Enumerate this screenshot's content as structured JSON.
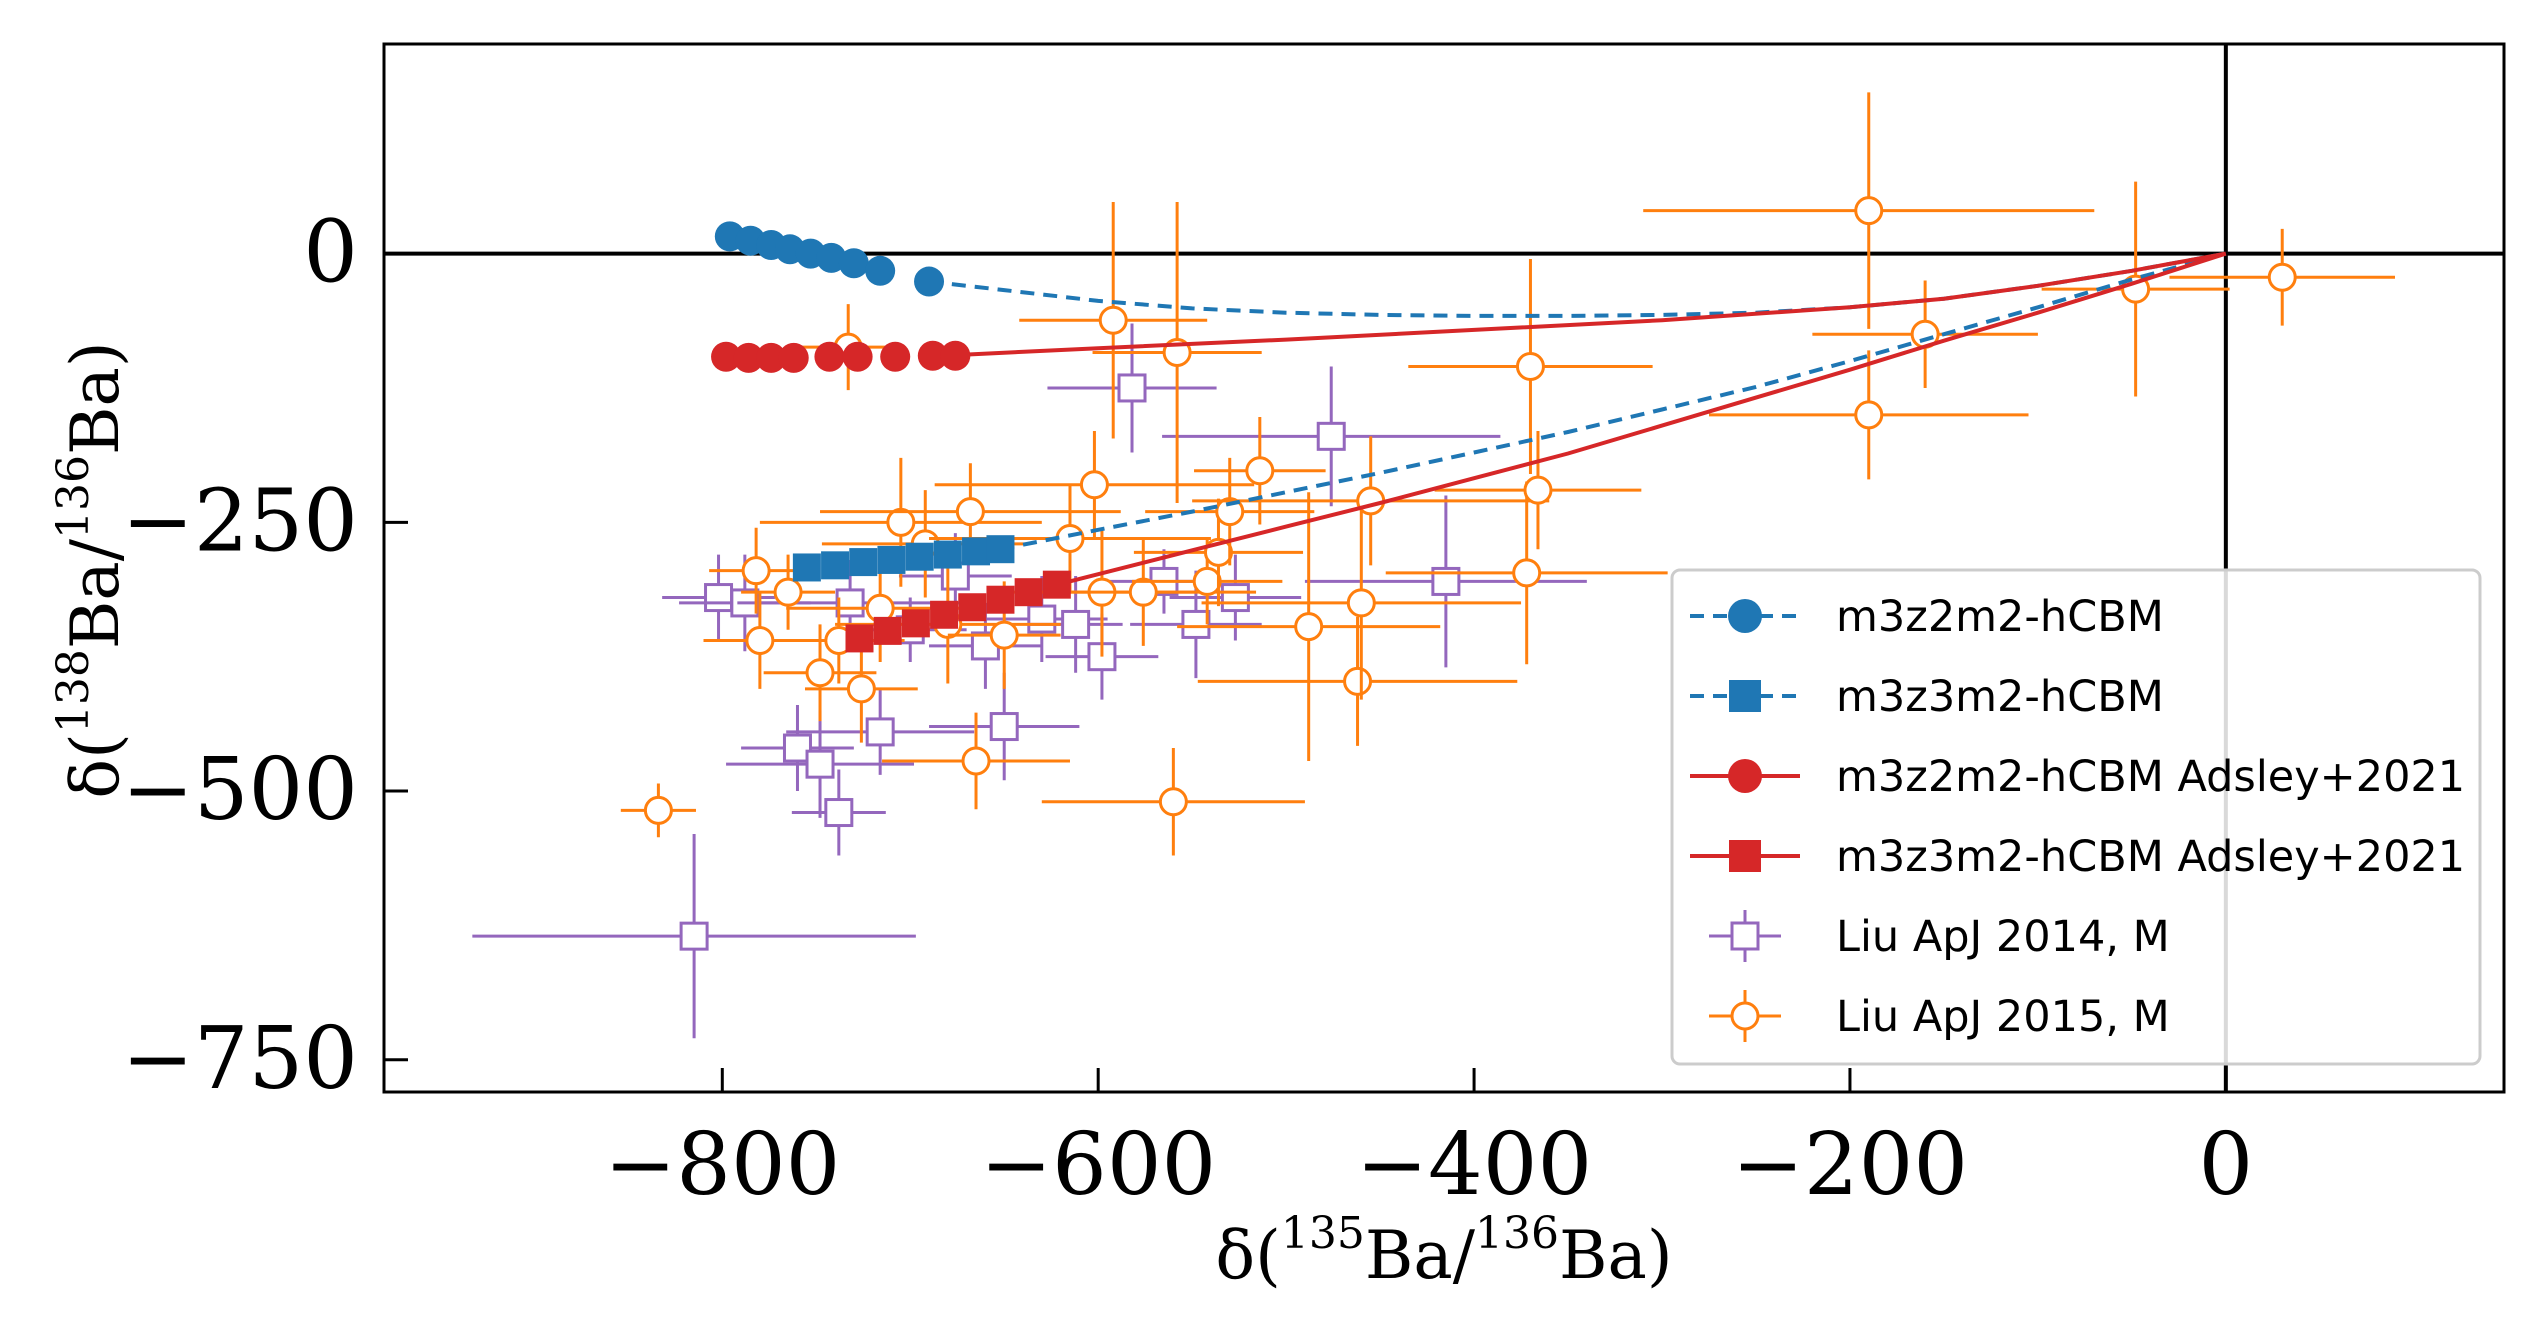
{
  "chart_data": {
    "type": "scatter",
    "xlabel": "δ(135Ba/136Ba)",
    "ylabel": "δ(138Ba/136Ba)",
    "xlabel_parts": {
      "pre": "δ(",
      "sup1": "135",
      "mid": "Ba/",
      "sup2": "136",
      "post": "Ba)"
    },
    "ylabel_parts": {
      "pre": "δ(",
      "sup1": "138",
      "mid": "Ba/",
      "sup2": "136",
      "post": "Ba)"
    },
    "xlim": [
      -980,
      148
    ],
    "ylim": [
      -780,
      195
    ],
    "xticks": [
      -800,
      -600,
      -400,
      -200,
      0
    ],
    "xtick_labels": [
      "−800",
      "−600",
      "−400",
      "−200",
      "0"
    ],
    "yticks": [
      0,
      -250,
      -500,
      -750
    ],
    "ytick_labels": [
      "0",
      "−250",
      "−500",
      "−750"
    ],
    "reference_lines": {
      "x": 0,
      "y": 0
    },
    "grid": false,
    "legend_position": "lower-right",
    "colors": {
      "blue": "#1f77b4",
      "red": "#d62728",
      "orange": "#ff7f0e",
      "purple": "#9467bd"
    },
    "series": [
      {
        "name": "m3z2m2-hCBM",
        "marker": "circle",
        "line": "dashed",
        "color": "#1f77b4",
        "curve": [
          [
            -690,
            -26
          ],
          [
            -650,
            -34
          ],
          [
            -600,
            -44
          ],
          [
            -550,
            -51
          ],
          [
            -500,
            -55
          ],
          [
            -450,
            -57
          ],
          [
            -400,
            -58
          ],
          [
            -350,
            -58
          ],
          [
            -300,
            -57
          ],
          [
            -250,
            -55
          ],
          [
            -200,
            -50
          ],
          [
            -150,
            -42
          ],
          [
            -100,
            -30
          ],
          [
            -50,
            -16
          ],
          [
            0,
            0
          ]
        ],
        "points": [
          [
            -796,
            16
          ],
          [
            -785,
            12
          ],
          [
            -774,
            8
          ],
          [
            -764,
            4
          ],
          [
            -753,
            0
          ],
          [
            -742,
            -4
          ],
          [
            -730,
            -9
          ],
          [
            -716,
            -16
          ],
          [
            -690,
            -26
          ]
        ]
      },
      {
        "name": "m3z3m2-hCBM",
        "marker": "square",
        "line": "dashed",
        "color": "#1f77b4",
        "curve": [
          [
            -652,
            -275
          ],
          [
            -600,
            -257
          ],
          [
            -550,
            -240
          ],
          [
            -500,
            -222
          ],
          [
            -450,
            -204
          ],
          [
            -400,
            -185
          ],
          [
            -350,
            -166
          ],
          [
            -300,
            -145
          ],
          [
            -250,
            -124
          ],
          [
            -200,
            -100
          ],
          [
            -150,
            -75
          ],
          [
            -100,
            -50
          ],
          [
            -50,
            -24
          ],
          [
            0,
            0
          ]
        ],
        "points": [
          [
            -755,
            -292
          ],
          [
            -740,
            -290
          ],
          [
            -725,
            -287
          ],
          [
            -710,
            -285
          ],
          [
            -695,
            -282
          ],
          [
            -680,
            -280
          ],
          [
            -665,
            -277
          ],
          [
            -652,
            -275
          ]
        ]
      },
      {
        "name": "m3z2m2-hCBM Adsley+2021",
        "marker": "circle",
        "line": "solid",
        "color": "#d62728",
        "curve": [
          [
            -683,
            -95
          ],
          [
            -600,
            -88
          ],
          [
            -500,
            -80
          ],
          [
            -400,
            -71
          ],
          [
            -300,
            -62
          ],
          [
            -200,
            -50
          ],
          [
            -150,
            -42
          ],
          [
            -100,
            -30
          ],
          [
            -50,
            -16
          ],
          [
            0,
            0
          ]
        ],
        "points": [
          [
            -798,
            -96
          ],
          [
            -786,
            -97
          ],
          [
            -774,
            -97
          ],
          [
            -762,
            -97
          ],
          [
            -743,
            -96
          ],
          [
            -728,
            -96
          ],
          [
            -708,
            -96
          ],
          [
            -688,
            -95
          ],
          [
            -676,
            -95
          ]
        ]
      },
      {
        "name": "m3z3m2-hCBM Adsley+2021",
        "marker": "square",
        "line": "solid",
        "color": "#d62728",
        "curve": [
          [
            -622,
            -308
          ],
          [
            -550,
            -276
          ],
          [
            -500,
            -254
          ],
          [
            -450,
            -232
          ],
          [
            -400,
            -209
          ],
          [
            -350,
            -186
          ],
          [
            -300,
            -160
          ],
          [
            -250,
            -134
          ],
          [
            -200,
            -108
          ],
          [
            -150,
            -81
          ],
          [
            -100,
            -55
          ],
          [
            -50,
            -28
          ],
          [
            0,
            0
          ]
        ],
        "points": [
          [
            -727,
            -358
          ],
          [
            -712,
            -351
          ],
          [
            -697,
            -344
          ],
          [
            -682,
            -336
          ],
          [
            -667,
            -329
          ],
          [
            -652,
            -322
          ],
          [
            -637,
            -315
          ],
          [
            -622,
            -308
          ]
        ]
      },
      {
        "name": "Liu ApJ 2014, M",
        "marker": "open-square",
        "line": "errorbar",
        "color": "#9467bd",
        "points": [
          {
            "x": -802,
            "y": -320,
            "xerr": 30,
            "yerr": 40
          },
          {
            "x": -788,
            "y": -325,
            "xerr": 35,
            "yerr": 45
          },
          {
            "x": -760,
            "y": -460,
            "xerr": 30,
            "yerr": 40
          },
          {
            "x": -748,
            "y": -475,
            "xerr": 50,
            "yerr": 50
          },
          {
            "x": -738,
            "y": -520,
            "xerr": 25,
            "yerr": 40
          },
          {
            "x": -732,
            "y": -325,
            "xerr": 60,
            "yerr": 40
          },
          {
            "x": -716,
            "y": -445,
            "xerr": 50,
            "yerr": 40
          },
          {
            "x": -700,
            "y": -350,
            "xerr": 30,
            "yerr": 30
          },
          {
            "x": -676,
            "y": -300,
            "xerr": 30,
            "yerr": 40
          },
          {
            "x": -660,
            "y": -365,
            "xerr": 30,
            "yerr": 40
          },
          {
            "x": -650,
            "y": -440,
            "xerr": 40,
            "yerr": 50
          },
          {
            "x": -630,
            "y": -340,
            "xerr": 35,
            "yerr": 40
          },
          {
            "x": -612,
            "y": -345,
            "xerr": 25,
            "yerr": 45
          },
          {
            "x": -598,
            "y": -375,
            "xerr": 30,
            "yerr": 40
          },
          {
            "x": -582,
            "y": -125,
            "xerr": 45,
            "yerr": 60
          },
          {
            "x": -565,
            "y": -305,
            "xerr": 30,
            "yerr": 30
          },
          {
            "x": -548,
            "y": -345,
            "xerr": 35,
            "yerr": 50
          },
          {
            "x": -527,
            "y": -320,
            "xerr": 35,
            "yerr": 40
          },
          {
            "x": -476,
            "y": -170,
            "xerr": 90,
            "yerr": 65
          },
          {
            "x": -415,
            "y": -305,
            "xerr": 75,
            "yerr": 80
          },
          {
            "x": -815,
            "y": -635,
            "xerr": 118,
            "yerr": 95
          }
        ]
      },
      {
        "name": "Liu ApJ 2015, M",
        "marker": "open-circle",
        "line": "errorbar",
        "color": "#ff7f0e",
        "points": [
          {
            "x": -834,
            "y": -518,
            "xerr": 20,
            "yerr": 25
          },
          {
            "x": -782,
            "y": -295,
            "xerr": 25,
            "yerr": 40
          },
          {
            "x": -780,
            "y": -360,
            "xerr": 30,
            "yerr": 45
          },
          {
            "x": -765,
            "y": -315,
            "xerr": 25,
            "yerr": 35
          },
          {
            "x": -748,
            "y": -390,
            "xerr": 30,
            "yerr": 45
          },
          {
            "x": -738,
            "y": -360,
            "xerr": 35,
            "yerr": 40
          },
          {
            "x": -733,
            "y": -87,
            "xerr": 30,
            "yerr": 40
          },
          {
            "x": -726,
            "y": -405,
            "xerr": 30,
            "yerr": 50
          },
          {
            "x": -716,
            "y": -330,
            "xerr": 50,
            "yerr": 50
          },
          {
            "x": -705,
            "y": -250,
            "xerr": 75,
            "yerr": 60
          },
          {
            "x": -692,
            "y": -270,
            "xerr": 55,
            "yerr": 50
          },
          {
            "x": -680,
            "y": -345,
            "xerr": 60,
            "yerr": 55
          },
          {
            "x": -668,
            "y": -240,
            "xerr": 80,
            "yerr": 45
          },
          {
            "x": -665,
            "y": -472,
            "xerr": 50,
            "yerr": 45
          },
          {
            "x": -650,
            "y": -355,
            "xerr": 30,
            "yerr": 50
          },
          {
            "x": -615,
            "y": -265,
            "xerr": 75,
            "yerr": 50
          },
          {
            "x": -602,
            "y": -215,
            "xerr": 85,
            "yerr": 50
          },
          {
            "x": -598,
            "y": -315,
            "xerr": 50,
            "yerr": 60
          },
          {
            "x": -592,
            "y": -62,
            "xerr": 50,
            "yerr": 110
          },
          {
            "x": -576,
            "y": -315,
            "xerr": 60,
            "yerr": 50
          },
          {
            "x": -560,
            "y": -510,
            "xerr": 70,
            "yerr": 50
          },
          {
            "x": -558,
            "y": -92,
            "xerr": 45,
            "yerr": 140
          },
          {
            "x": -542,
            "y": -305,
            "xerr": 40,
            "yerr": 40
          },
          {
            "x": -536,
            "y": -278,
            "xerr": 45,
            "yerr": 50
          },
          {
            "x": -530,
            "y": -240,
            "xerr": 45,
            "yerr": 50
          },
          {
            "x": -514,
            "y": -202,
            "xerr": 35,
            "yerr": 50
          },
          {
            "x": -488,
            "y": -347,
            "xerr": 70,
            "yerr": 125
          },
          {
            "x": -462,
            "y": -398,
            "xerr": 85,
            "yerr": 60
          },
          {
            "x": -460,
            "y": -325,
            "xerr": 85,
            "yerr": 90
          },
          {
            "x": -455,
            "y": -230,
            "xerr": 95,
            "yerr": 60
          },
          {
            "x": -372,
            "y": -297,
            "xerr": 75,
            "yerr": 85
          },
          {
            "x": -370,
            "y": -105,
            "xerr": 65,
            "yerr": 100
          },
          {
            "x": -366,
            "y": -220,
            "xerr": 55,
            "yerr": 55
          },
          {
            "x": -190,
            "y": 40,
            "xerr": 120,
            "yerr": 110
          },
          {
            "x": -190,
            "y": -150,
            "xerr": 85,
            "yerr": 60
          },
          {
            "x": -160,
            "y": -75,
            "xerr": 60,
            "yerr": 50
          },
          {
            "x": -48,
            "y": -33,
            "xerr": 50,
            "yerr": 100
          },
          {
            "x": 30,
            "y": -22,
            "xerr": 60,
            "yerr": 45
          }
        ]
      }
    ]
  }
}
